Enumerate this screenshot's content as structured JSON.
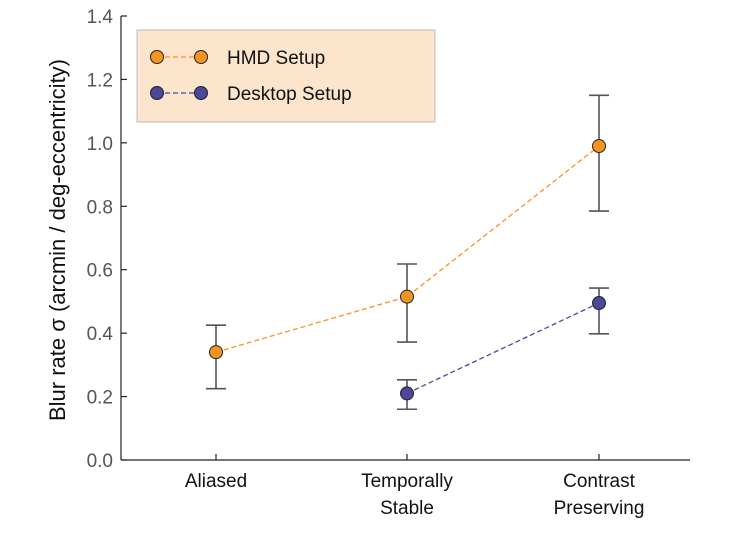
{
  "chart_data": {
    "type": "line",
    "categories": [
      [
        "Aliased"
      ],
      [
        "Temporally",
        "Stable"
      ],
      [
        "Contrast",
        "Preserving"
      ]
    ],
    "ylabel": "Blur rate σ (arcmin / deg-eccentricity)",
    "xlabel": "",
    "ylim": [
      0,
      1.4
    ],
    "yticks": [
      "0.0",
      "0.2",
      "0.4",
      "0.6",
      "0.8",
      "1.0",
      "1.2",
      "1.4"
    ],
    "grid": false,
    "legend_position": "top-left",
    "series": [
      {
        "name": "HMD Setup",
        "color": "#f7931e",
        "line_color": "#f7931e",
        "points": [
          {
            "category_index": 0,
            "value": 0.34,
            "err_low": 0.225,
            "err_high": 0.425
          },
          {
            "category_index": 1,
            "value": 0.515,
            "err_low": 0.372,
            "err_high": 0.618
          },
          {
            "category_index": 2,
            "value": 0.99,
            "err_low": 0.785,
            "err_high": 1.15
          }
        ]
      },
      {
        "name": "Desktop Setup",
        "color": "#4b479a",
        "line_color": "#4b479a",
        "points": [
          {
            "category_index": 1,
            "value": 0.21,
            "err_low": 0.16,
            "err_high": 0.253
          },
          {
            "category_index": 2,
            "value": 0.495,
            "err_low": 0.398,
            "err_high": 0.542
          }
        ]
      }
    ],
    "legend_background": "#fce5cc",
    "errorbar_color": "#555555"
  }
}
